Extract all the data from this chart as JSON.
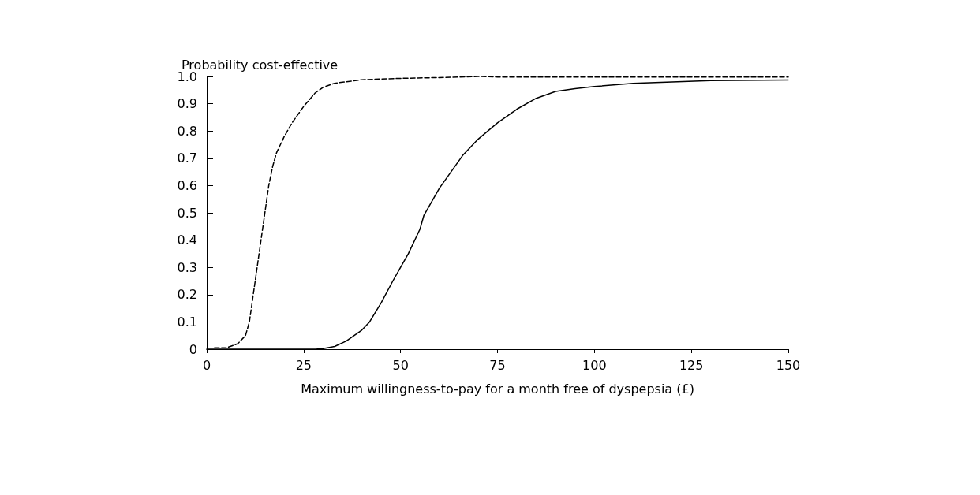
{
  "chart_data": {
    "type": "line",
    "ylabel": "Probability cost-effective",
    "xlabel": "Maximum willingness-to-pay for a month free of dyspepsia (£)",
    "xlim": [
      0,
      150
    ],
    "xticks": [
      0,
      25,
      50,
      75,
      100,
      125,
      150
    ],
    "ylim": [
      0,
      1
    ],
    "yticks": [
      0,
      0.1,
      0.2,
      0.3,
      0.4,
      0.5,
      0.6,
      0.7,
      0.8,
      0.9,
      {
        "value": 1,
        "label": "1.0"
      }
    ],
    "grid": false,
    "marker": "none",
    "series": [
      {
        "color": "#000000",
        "line_style": "dashed",
        "x": [
          2,
          5,
          8,
          10,
          11,
          12,
          13,
          14,
          15,
          16,
          17,
          18,
          20,
          22,
          25,
          28,
          30,
          33,
          40,
          50,
          60,
          70,
          75,
          100,
          125,
          150
        ],
        "values": [
          0.005,
          0.005,
          0.02,
          0.05,
          0.1,
          0.2,
          0.3,
          0.4,
          0.5,
          0.6,
          0.67,
          0.72,
          0.78,
          0.83,
          0.89,
          0.94,
          0.96,
          0.975,
          0.988,
          0.993,
          0.996,
          1.0,
          0.998,
          0.998,
          0.998,
          0.998
        ]
      },
      {
        "color": "#000000",
        "line_style": "solid",
        "x": [
          0,
          10,
          20,
          28,
          30,
          33,
          36,
          40,
          42,
          45,
          48,
          50,
          52,
          55,
          56,
          58,
          60,
          63,
          66,
          70,
          75,
          80,
          85,
          90,
          95,
          100,
          110,
          120,
          130,
          150
        ],
        "values": [
          0,
          0,
          0,
          0,
          0.002,
          0.01,
          0.03,
          0.07,
          0.1,
          0.17,
          0.25,
          0.3,
          0.35,
          0.44,
          0.49,
          0.54,
          0.59,
          0.65,
          0.71,
          0.77,
          0.83,
          0.88,
          0.92,
          0.945,
          0.955,
          0.963,
          0.975,
          0.98,
          0.985,
          0.987
        ]
      }
    ]
  }
}
